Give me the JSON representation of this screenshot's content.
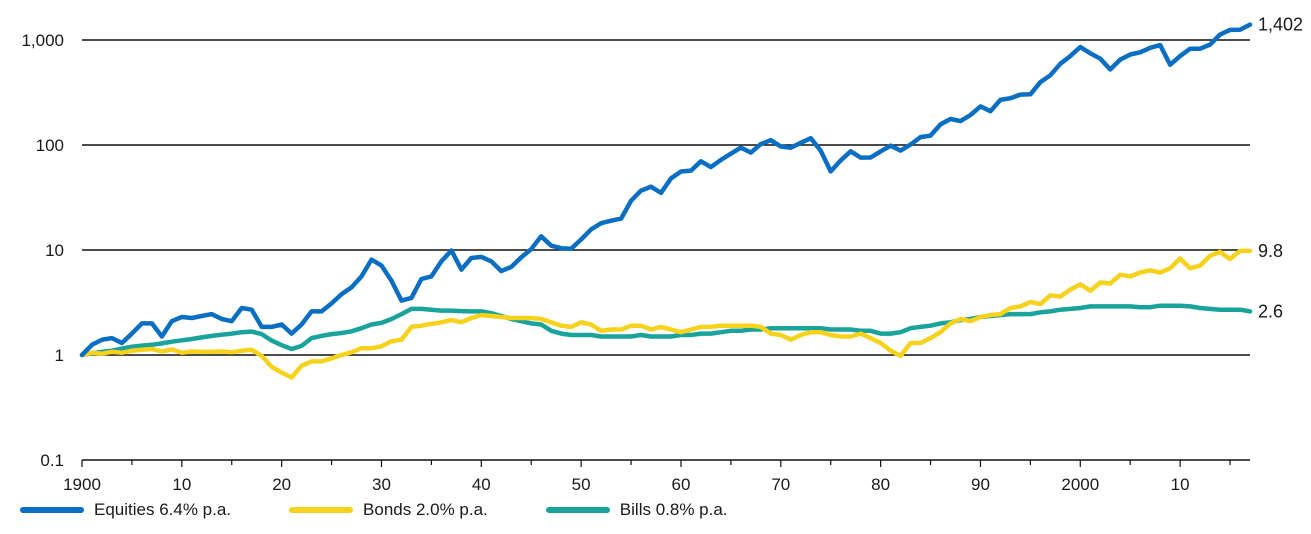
{
  "chart_data": {
    "type": "line",
    "yscale": "log",
    "ylim": [
      0.1,
      1402
    ],
    "xlim": [
      1900,
      2017
    ],
    "y_ticks": [
      {
        "value": 1000,
        "label": "1,000"
      },
      {
        "value": 100,
        "label": "100"
      },
      {
        "value": 10,
        "label": "10"
      },
      {
        "value": 1,
        "label": "1"
      },
      {
        "value": 0.1,
        "label": "0.1"
      }
    ],
    "x_ticks": [
      {
        "value": 1900,
        "label": "1900"
      },
      {
        "value": 1910,
        "label": "10"
      },
      {
        "value": 1920,
        "label": "20"
      },
      {
        "value": 1930,
        "label": "30"
      },
      {
        "value": 1940,
        "label": "40"
      },
      {
        "value": 1950,
        "label": "50"
      },
      {
        "value": 1960,
        "label": "60"
      },
      {
        "value": 1970,
        "label": "70"
      },
      {
        "value": 1980,
        "label": "80"
      },
      {
        "value": 1990,
        "label": "90"
      },
      {
        "value": 2000,
        "label": "2000"
      },
      {
        "value": 2010,
        "label": "10"
      }
    ],
    "gridlines": [
      1000,
      100,
      10,
      1
    ],
    "legend_position": "bottom-left",
    "x": [
      1900,
      1901,
      1902,
      1903,
      1904,
      1905,
      1906,
      1907,
      1908,
      1909,
      1910,
      1911,
      1912,
      1913,
      1914,
      1915,
      1916,
      1917,
      1918,
      1919,
      1920,
      1921,
      1922,
      1923,
      1924,
      1925,
      1926,
      1927,
      1928,
      1929,
      1930,
      1931,
      1932,
      1933,
      1934,
      1935,
      1936,
      1937,
      1938,
      1939,
      1940,
      1941,
      1942,
      1943,
      1944,
      1945,
      1946,
      1947,
      1948,
      1949,
      1950,
      1951,
      1952,
      1953,
      1954,
      1955,
      1956,
      1957,
      1958,
      1959,
      1960,
      1961,
      1962,
      1963,
      1964,
      1965,
      1966,
      1967,
      1968,
      1969,
      1970,
      1971,
      1972,
      1973,
      1974,
      1975,
      1976,
      1977,
      1978,
      1979,
      1980,
      1981,
      1982,
      1983,
      1984,
      1985,
      1986,
      1987,
      1988,
      1989,
      1990,
      1991,
      1992,
      1993,
      1994,
      1995,
      1996,
      1997,
      1998,
      1999,
      2000,
      2001,
      2002,
      2003,
      2004,
      2005,
      2006,
      2007,
      2008,
      2009,
      2010,
      2011,
      2012,
      2013,
      2014,
      2015,
      2016,
      2017
    ],
    "series": [
      {
        "name": "Equities 6.4% p.a.",
        "color": "#0a6fc2",
        "end_label": "1,402",
        "values": [
          1,
          1.25,
          1.4,
          1.45,
          1.3,
          1.6,
          2.0,
          2.0,
          1.5,
          2.1,
          2.3,
          2.25,
          2.35,
          2.45,
          2.2,
          2.1,
          2.8,
          2.7,
          1.85,
          1.85,
          1.95,
          1.6,
          1.95,
          2.6,
          2.6,
          3.1,
          3.8,
          4.4,
          5.6,
          8.1,
          7.1,
          5.1,
          3.3,
          3.5,
          5.3,
          5.6,
          7.8,
          9.9,
          6.5,
          8.4,
          8.6,
          7.8,
          6.3,
          6.9,
          8.5,
          10.2,
          13.5,
          11.0,
          10.4,
          10.3,
          12.6,
          15.7,
          18.0,
          19.0,
          19.9,
          29.5,
          36.8,
          40.1,
          35.0,
          48.1,
          55.9,
          57.1,
          69.9,
          61.6,
          72.1,
          82.6,
          94.5,
          84.6,
          102,
          111,
          96.7,
          94.1,
          105,
          116,
          88.2,
          56.1,
          71.4,
          87.1,
          75.9,
          76.1,
          87.0,
          98.5,
          88.5,
          101,
          119,
          123,
          157,
          177,
          169,
          193,
          233,
          210,
          269,
          279,
          302,
          304,
          397,
          461,
          594,
          703,
          857,
          747,
          663,
          524,
          651,
          727,
          764,
          843,
          895,
          580,
          703,
          827,
          827,
          905,
          1129,
          1249,
          1253,
          1402
        ]
      },
      {
        "name": "Bonds 2.0% p.a.",
        "color": "#f7d21c",
        "end_label": "9.8",
        "values": [
          1,
          1.05,
          1.03,
          1.07,
          1.05,
          1.1,
          1.12,
          1.14,
          1.08,
          1.13,
          1.05,
          1.08,
          1.07,
          1.07,
          1.08,
          1.06,
          1.1,
          1.12,
          0.98,
          0.77,
          0.68,
          0.61,
          0.79,
          0.87,
          0.87,
          0.93,
          1.0,
          1.06,
          1.16,
          1.16,
          1.21,
          1.35,
          1.4,
          1.85,
          1.9,
          1.98,
          2.05,
          2.15,
          2.05,
          2.25,
          2.4,
          2.35,
          2.3,
          2.25,
          2.25,
          2.25,
          2.2,
          2.05,
          1.9,
          1.85,
          2.05,
          1.95,
          1.7,
          1.75,
          1.75,
          1.9,
          1.9,
          1.75,
          1.85,
          1.75,
          1.65,
          1.75,
          1.85,
          1.85,
          1.9,
          1.9,
          1.9,
          1.9,
          1.85,
          1.6,
          1.55,
          1.4,
          1.55,
          1.65,
          1.65,
          1.55,
          1.5,
          1.5,
          1.6,
          1.45,
          1.3,
          1.1,
          0.98,
          1.3,
          1.3,
          1.45,
          1.65,
          2.0,
          2.2,
          2.1,
          2.3,
          2.4,
          2.45,
          2.8,
          2.9,
          3.2,
          3.05,
          3.7,
          3.6,
          4.2,
          4.7,
          4.1,
          4.9,
          4.8,
          5.8,
          5.6,
          6.1,
          6.4,
          6.1,
          6.7,
          8.3,
          6.7,
          7.1,
          8.8,
          9.6,
          8.2,
          9.8,
          9.8
        ]
      },
      {
        "name": "Bills 0.8% p.a.",
        "color": "#1aa39a",
        "end_label": "2.6",
        "values": [
          1,
          1.04,
          1.07,
          1.1,
          1.15,
          1.2,
          1.23,
          1.25,
          1.29,
          1.34,
          1.38,
          1.42,
          1.47,
          1.52,
          1.56,
          1.6,
          1.65,
          1.67,
          1.58,
          1.37,
          1.24,
          1.14,
          1.22,
          1.45,
          1.52,
          1.58,
          1.62,
          1.68,
          1.8,
          1.95,
          2.02,
          2.2,
          2.45,
          2.75,
          2.75,
          2.7,
          2.65,
          2.65,
          2.62,
          2.6,
          2.6,
          2.5,
          2.35,
          2.2,
          2.1,
          2.0,
          1.95,
          1.7,
          1.6,
          1.55,
          1.55,
          1.55,
          1.5,
          1.5,
          1.5,
          1.5,
          1.55,
          1.5,
          1.5,
          1.5,
          1.55,
          1.55,
          1.6,
          1.6,
          1.65,
          1.7,
          1.7,
          1.75,
          1.75,
          1.8,
          1.8,
          1.8,
          1.8,
          1.8,
          1.8,
          1.75,
          1.75,
          1.75,
          1.7,
          1.7,
          1.6,
          1.6,
          1.65,
          1.8,
          1.85,
          1.9,
          2.0,
          2.05,
          2.15,
          2.2,
          2.3,
          2.35,
          2.4,
          2.45,
          2.45,
          2.45,
          2.55,
          2.6,
          2.7,
          2.75,
          2.8,
          2.9,
          2.9,
          2.9,
          2.9,
          2.9,
          2.85,
          2.85,
          2.95,
          2.95,
          2.95,
          2.9,
          2.8,
          2.75,
          2.7,
          2.7,
          2.7,
          2.6
        ]
      }
    ]
  }
}
